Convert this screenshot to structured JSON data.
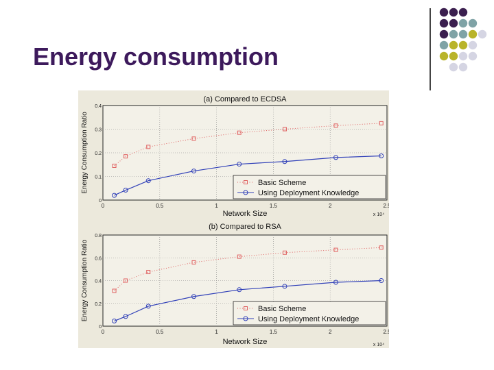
{
  "slide": {
    "title": "Energy consumption"
  },
  "decor": {
    "dots": [
      [
        "purple",
        "purple",
        "purple",
        null,
        null
      ],
      [
        "purple",
        "purple",
        "teal",
        "teal",
        null
      ],
      [
        "purple",
        "teal",
        "teal",
        "olive",
        "lavender"
      ],
      [
        "teal",
        "olive",
        "olive",
        "lavender",
        null
      ],
      [
        "olive",
        "olive",
        "lavender",
        "lavender",
        null
      ],
      [
        null,
        "lavender",
        "lavender",
        null,
        null
      ]
    ],
    "colors": {
      "purple": "#3b1f4f",
      "teal": "#7fa3a6",
      "olive": "#b9b42a",
      "lavender": "#d5d5e3"
    }
  },
  "chart_data": [
    {
      "type": "line",
      "title": "(a) Compared to ECDSA",
      "xlabel": "Network Size",
      "ylabel": "Energy Consumption Ratio",
      "xlim": [
        0,
        25000
      ],
      "ylim": [
        0,
        0.4
      ],
      "x_ticks": [
        "0",
        "0.5",
        "1",
        "1.5",
        "2",
        "2.5"
      ],
      "y_ticks": [
        "0",
        "0.1",
        "0.2",
        "0.3",
        "0.4"
      ],
      "x_multiplier": "x 10⁴",
      "grid": true,
      "legend": "bottom-right",
      "series": [
        {
          "name": "Basic Scheme",
          "marker": "square",
          "line": "dotted",
          "color": "#e06060",
          "x": [
            1000,
            2000,
            4000,
            8000,
            12000,
            16000,
            20500,
            24500
          ],
          "values": [
            0.145,
            0.185,
            0.225,
            0.26,
            0.285,
            0.3,
            0.315,
            0.325
          ]
        },
        {
          "name": "Using Deployment Knowledge",
          "marker": "circle",
          "line": "solid",
          "color": "#2f3fb8",
          "x": [
            1000,
            2000,
            4000,
            8000,
            12000,
            16000,
            20500,
            24500
          ],
          "values": [
            0.02,
            0.042,
            0.082,
            0.123,
            0.152,
            0.163,
            0.18,
            0.187
          ]
        }
      ]
    },
    {
      "type": "line",
      "title": "(b) Compared to RSA",
      "xlabel": "Network Size",
      "ylabel": "Energy Consumption Ratio",
      "xlim": [
        0,
        25000
      ],
      "ylim": [
        0,
        0.8
      ],
      "x_ticks": [
        "0",
        "0.5",
        "1",
        "1.5",
        "2",
        "2.5"
      ],
      "y_ticks": [
        "0",
        "0.2",
        "0.4",
        "0.6",
        "0.8"
      ],
      "x_multiplier": "x 10⁴",
      "grid": true,
      "legend": "bottom-right",
      "series": [
        {
          "name": "Basic Scheme",
          "marker": "square",
          "line": "dotted",
          "color": "#e06060",
          "x": [
            1000,
            2000,
            4000,
            8000,
            12000,
            16000,
            20500,
            24500
          ],
          "values": [
            0.31,
            0.4,
            0.475,
            0.56,
            0.61,
            0.645,
            0.67,
            0.69
          ]
        },
        {
          "name": "Using Deployment Knowledge",
          "marker": "circle",
          "line": "solid",
          "color": "#2f3fb8",
          "x": [
            1000,
            2000,
            4000,
            8000,
            12000,
            16000,
            20500,
            24500
          ],
          "values": [
            0.045,
            0.085,
            0.175,
            0.26,
            0.32,
            0.35,
            0.385,
            0.4
          ]
        }
      ]
    }
  ]
}
